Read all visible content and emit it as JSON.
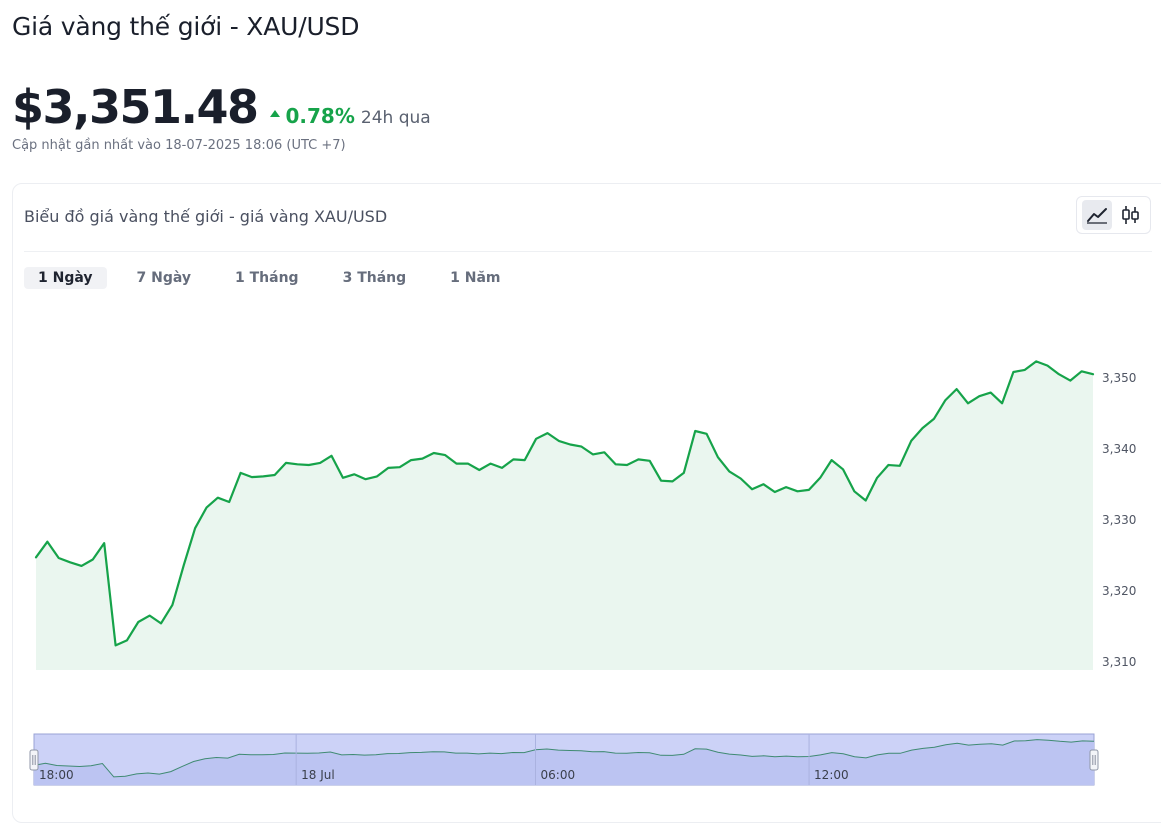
{
  "header": {
    "title": "Giá vàng thế giới - XAU/USD",
    "price": "$3,351.48",
    "change_pct": "0.78%",
    "change_period": "24h qua",
    "change_color": "#16a34a",
    "updated": "Cập nhật gần nhất vào 18-07-2025 18:06 (UTC +7)"
  },
  "card": {
    "title": "Biểu đồ giá vàng thế giới - giá vàng XAU/USD",
    "chart_type_buttons": [
      {
        "icon": "line-chart-icon",
        "active": true
      },
      {
        "icon": "candlestick-icon",
        "active": false
      }
    ],
    "tabs": [
      {
        "label": "1 Ngày",
        "active": true
      },
      {
        "label": "7 Ngày",
        "active": false
      },
      {
        "label": "1 Tháng",
        "active": false
      },
      {
        "label": "3 Tháng",
        "active": false
      },
      {
        "label": "1 Năm",
        "active": false
      }
    ]
  },
  "chart_data": {
    "type": "area",
    "title": "",
    "xlabel": "",
    "ylabel": "",
    "ylim": [
      3310,
      3355
    ],
    "yticks": [
      3310,
      3320,
      3330,
      3340,
      3350
    ],
    "ytick_labels": [
      "3,310",
      "3,320",
      "3,330",
      "3,340",
      "3,350"
    ],
    "line_color": "#16a34a",
    "fill_color": "#eaf6ef",
    "grid": false,
    "series": [
      {
        "values": [
          3324.6,
          3326.8,
          3324.5,
          3323.9,
          3323.4,
          3324.3,
          3326.6,
          3312.2,
          3312.9,
          3315.5,
          3316.4,
          3315.3,
          3317.9,
          3323.5,
          3328.7,
          3331.6,
          3333.0,
          3332.4,
          3336.5,
          3335.9,
          3336.0,
          3336.2,
          3337.9,
          3337.7,
          3337.6,
          3337.9,
          3338.9,
          3335.8,
          3336.3,
          3335.6,
          3336.0,
          3337.2,
          3337.3,
          3338.3,
          3338.5,
          3339.3,
          3339.0,
          3337.8,
          3337.8,
          3336.9,
          3337.8,
          3337.2,
          3338.4,
          3338.3,
          3341.3,
          3342.1,
          3341.0,
          3340.5,
          3340.2,
          3339.1,
          3339.4,
          3337.7,
          3337.6,
          3338.4,
          3338.2,
          3335.4,
          3335.3,
          3336.5,
          3342.4,
          3342.0,
          3338.7,
          3336.7,
          3335.7,
          3334.2,
          3334.9,
          3333.8,
          3334.5,
          3333.9,
          3334.1,
          3335.8,
          3338.3,
          3337.0,
          3333.9,
          3332.6,
          3335.8,
          3337.6,
          3337.5,
          3341.0,
          3342.8,
          3344.1,
          3346.7,
          3348.3,
          3346.3,
          3347.3,
          3347.8,
          3346.3,
          3350.7,
          3351.0,
          3352.2,
          3351.6,
          3350.4,
          3349.5,
          3350.8,
          3350.4
        ]
      }
    ],
    "navigator": {
      "labels": [
        "18:00",
        "18 Jul",
        "06:00",
        "12:00"
      ],
      "label_index": [
        0,
        23,
        44,
        68
      ]
    }
  }
}
